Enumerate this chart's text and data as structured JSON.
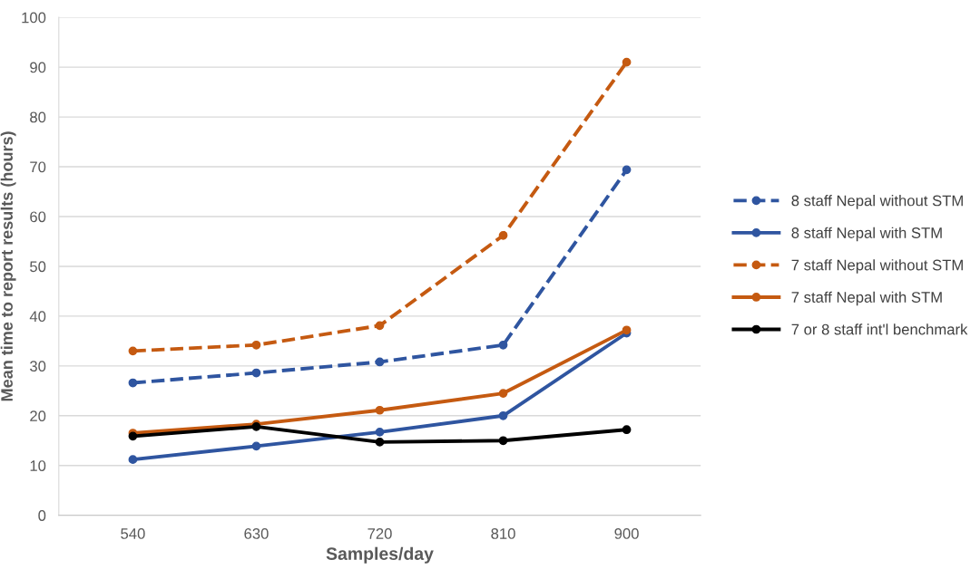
{
  "chart_data": {
    "type": "line",
    "xlabel": "Samples/day",
    "ylabel": "Mean time to report results (hours)",
    "categories": [
      "540",
      "630",
      "720",
      "810",
      "900"
    ],
    "ylim": [
      0,
      100
    ],
    "yticks": [
      0,
      10,
      20,
      30,
      40,
      50,
      60,
      70,
      80,
      90,
      100
    ],
    "grid": "y",
    "legend": "right",
    "marker": "circle",
    "series": [
      {
        "name": "8 staff Nepal without STM",
        "color": "#2f55a0",
        "line_style": "dashed",
        "values": [
          26.6,
          28.6,
          30.8,
          34.2,
          69.4
        ]
      },
      {
        "name": "8 staff Nepal with STM",
        "color": "#2f55a0",
        "line_style": "solid",
        "values": [
          11.2,
          13.9,
          16.7,
          20.0,
          36.6
        ]
      },
      {
        "name": "7 staff Nepal without STM",
        "color": "#c55a11",
        "line_style": "dashed",
        "values": [
          33.0,
          34.2,
          38.1,
          56.2,
          91.0
        ]
      },
      {
        "name": "7 staff Nepal with STM",
        "color": "#c55a11",
        "line_style": "solid",
        "values": [
          16.5,
          18.3,
          21.1,
          24.5,
          37.2
        ]
      },
      {
        "name": "7 or 8 staff int'l benchmark",
        "color": "#000000",
        "line_style": "solid",
        "values": [
          15.9,
          17.8,
          14.7,
          15.0,
          17.2
        ]
      }
    ]
  }
}
